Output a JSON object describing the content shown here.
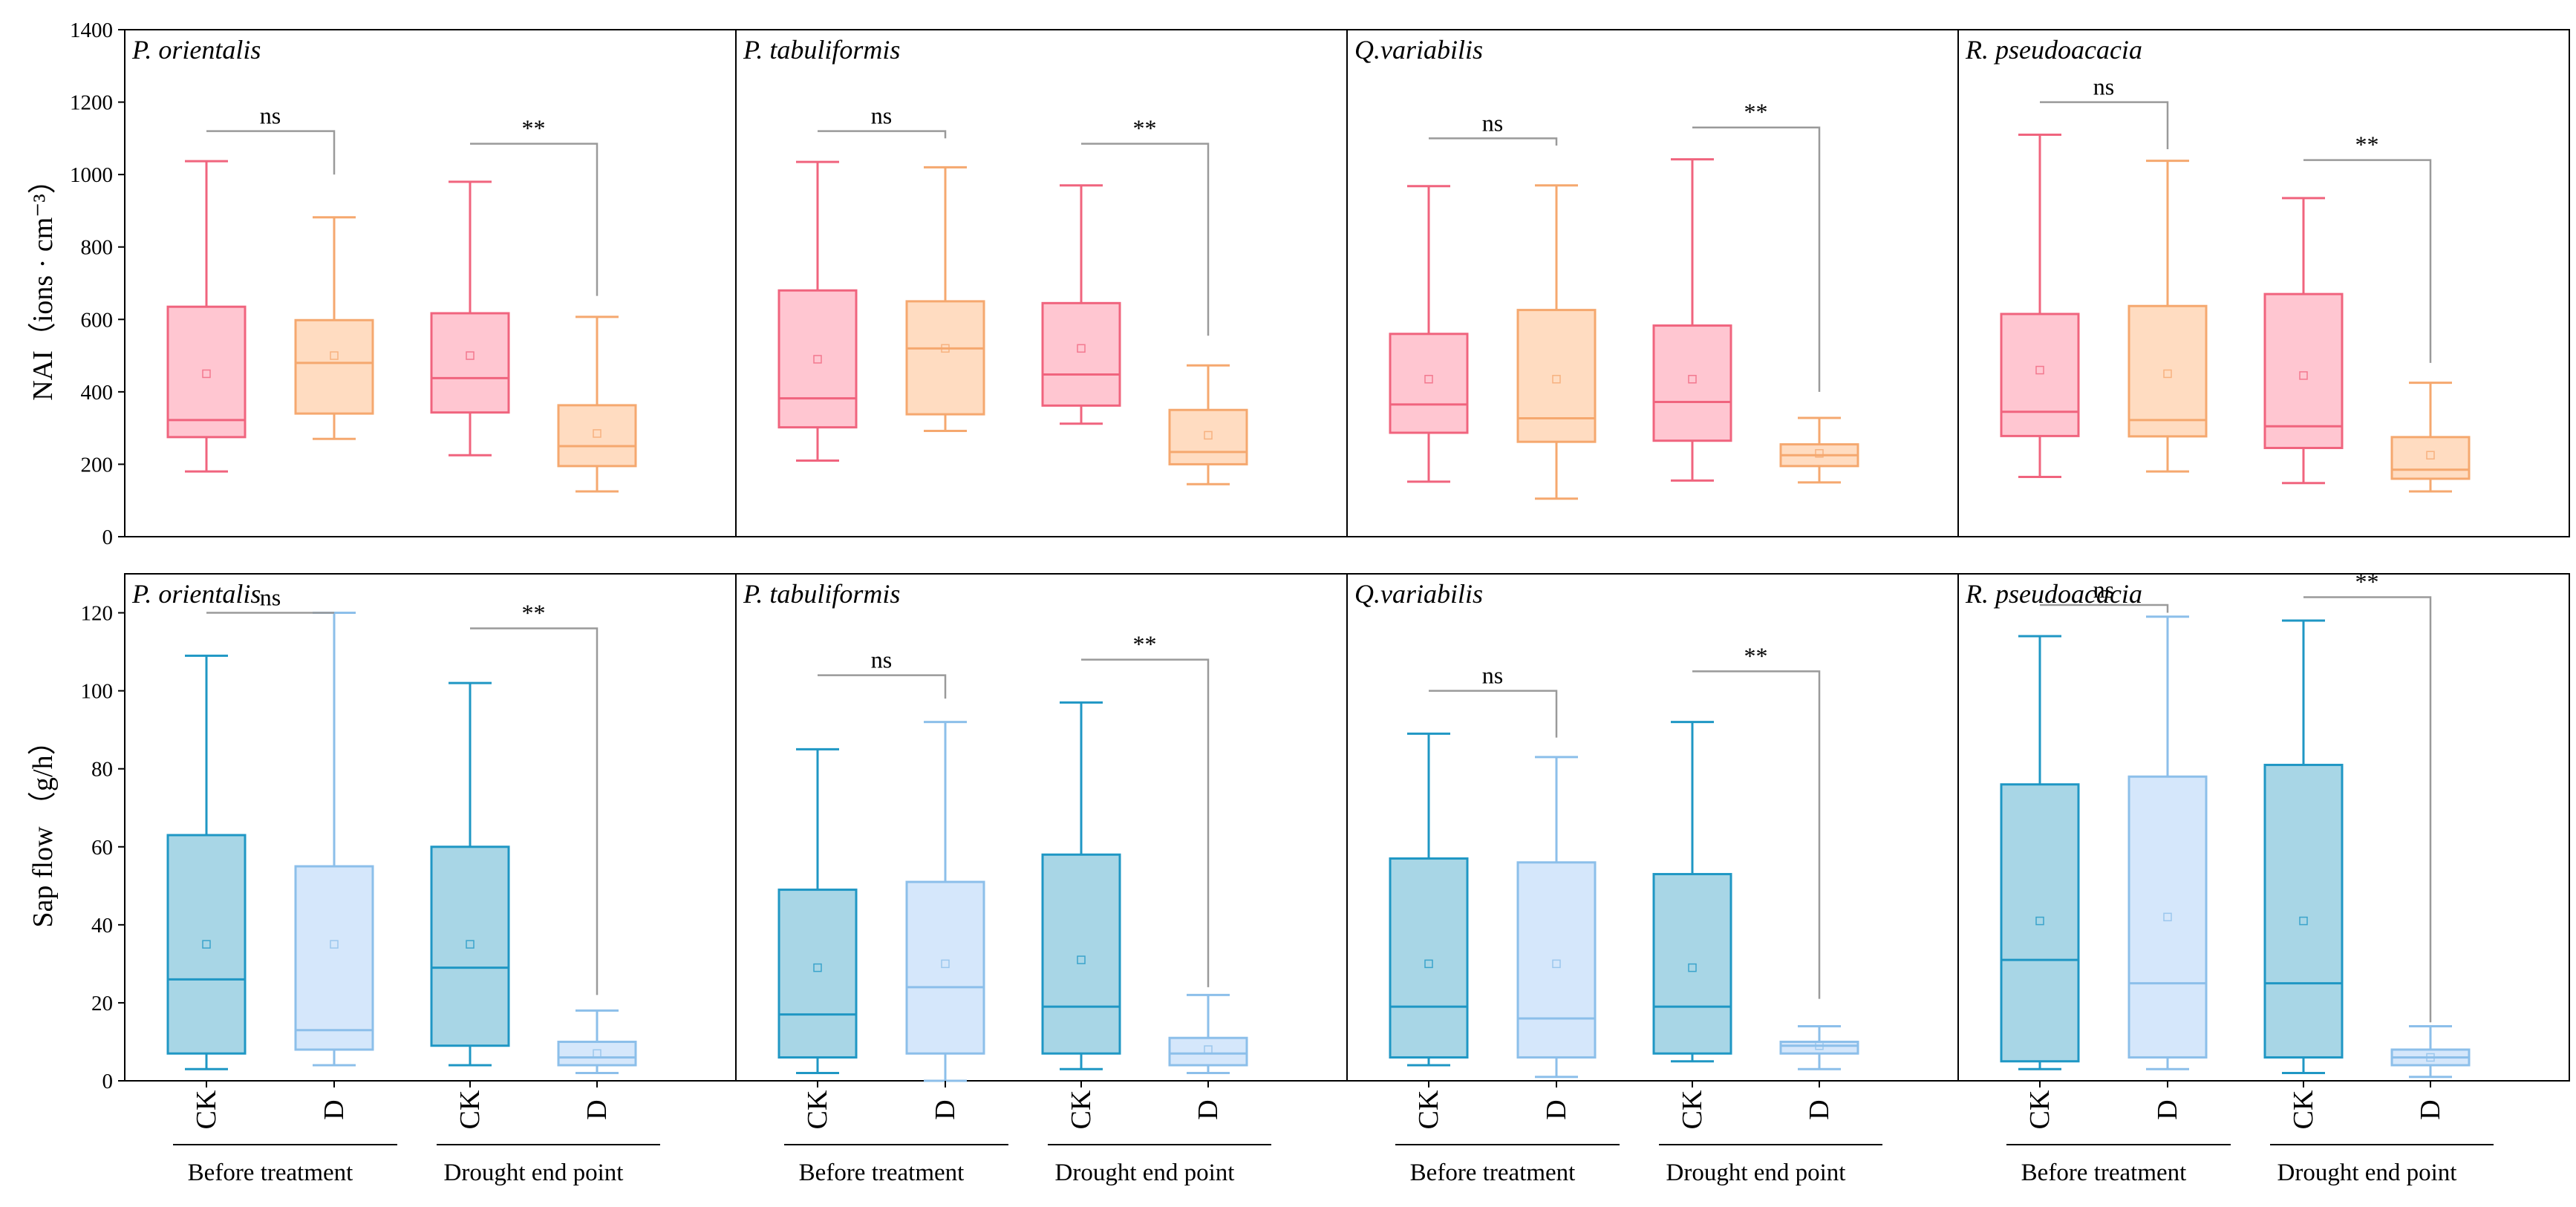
{
  "chart_data": {
    "type": "boxplot",
    "species": [
      "P. orientalis",
      "P. tabuliformis",
      "Q.variabilis",
      "R.  pseudoacacia"
    ],
    "categories": [
      "CK",
      "D",
      "CK",
      "D"
    ],
    "groups": [
      "Before treatment",
      "Drought end point"
    ],
    "colors": {
      "nai_ck_fill": "#ffc6d1",
      "nai_ck_line": "#f0647e",
      "nai_d_fill": "#ffdcc1",
      "nai_d_line": "#f5a86f",
      "sap_ck_fill": "#a8d6e6",
      "sap_ck_line": "#1f97c4",
      "sap_d_fill": "#d5e7fb",
      "sap_d_line": "#8cbfea",
      "bracket": "#9a9a9a"
    },
    "rows": [
      {
        "key": "nai",
        "ylabel": "NAI（ions · cm⁻³）",
        "ylim": [
          0,
          1400
        ],
        "yticks": [
          0,
          200,
          400,
          600,
          800,
          1000,
          1200,
          1400
        ],
        "panels": [
          {
            "species": "P. orientalis",
            "boxes": [
              {
                "whisker_low": 180,
                "q1": 275,
                "median": 322,
                "q3": 635,
                "whisker_high": 1037,
                "mean": 450
              },
              {
                "whisker_low": 270,
                "q1": 340,
                "median": 480,
                "q3": 598,
                "whisker_high": 882,
                "mean": 500
              },
              {
                "whisker_low": 225,
                "q1": 343,
                "median": 438,
                "q3": 617,
                "whisker_high": 980,
                "mean": 500
              },
              {
                "whisker_low": 125,
                "q1": 195,
                "median": 250,
                "q3": 363,
                "whisker_high": 607,
                "mean": 285
              }
            ],
            "brackets": [
              {
                "label": "ns",
                "y": 1120,
                "left_y": 1120,
                "right_y": 1000
              },
              {
                "label": "**",
                "y": 1085,
                "left_y": 1085,
                "right_y": 665
              }
            ]
          },
          {
            "species": "P. tabuliformis",
            "boxes": [
              {
                "whisker_low": 210,
                "q1": 302,
                "median": 382,
                "q3": 680,
                "whisker_high": 1035,
                "mean": 490
              },
              {
                "whisker_low": 292,
                "q1": 338,
                "median": 520,
                "q3": 650,
                "whisker_high": 1020,
                "mean": 520
              },
              {
                "whisker_low": 312,
                "q1": 362,
                "median": 448,
                "q3": 645,
                "whisker_high": 970,
                "mean": 520
              },
              {
                "whisker_low": 145,
                "q1": 200,
                "median": 234,
                "q3": 350,
                "whisker_high": 473,
                "mean": 280
              }
            ],
            "brackets": [
              {
                "label": "ns",
                "y": 1120,
                "left_y": 1120,
                "right_y": 1100
              },
              {
                "label": "**",
                "y": 1085,
                "left_y": 1085,
                "right_y": 555
              }
            ]
          },
          {
            "species": "Q.variabilis",
            "boxes": [
              {
                "whisker_low": 152,
                "q1": 287,
                "median": 365,
                "q3": 560,
                "whisker_high": 968,
                "mean": 435
              },
              {
                "whisker_low": 105,
                "q1": 262,
                "median": 327,
                "q3": 626,
                "whisker_high": 970,
                "mean": 435
              },
              {
                "whisker_low": 155,
                "q1": 265,
                "median": 372,
                "q3": 583,
                "whisker_high": 1042,
                "mean": 435
              },
              {
                "whisker_low": 150,
                "q1": 195,
                "median": 225,
                "q3": 255,
                "whisker_high": 328,
                "mean": 230
              }
            ],
            "brackets": [
              {
                "label": "ns",
                "y": 1100,
                "left_y": 1100,
                "right_y": 1080
              },
              {
                "label": "**",
                "y": 1130,
                "left_y": 1130,
                "right_y": 400
              }
            ]
          },
          {
            "species": "R.  pseudoacacia",
            "boxes": [
              {
                "whisker_low": 165,
                "q1": 278,
                "median": 345,
                "q3": 615,
                "whisker_high": 1110,
                "mean": 460
              },
              {
                "whisker_low": 180,
                "q1": 277,
                "median": 322,
                "q3": 637,
                "whisker_high": 1038,
                "mean": 450
              },
              {
                "whisker_low": 148,
                "q1": 245,
                "median": 305,
                "q3": 670,
                "whisker_high": 935,
                "mean": 445
              },
              {
                "whisker_low": 125,
                "q1": 160,
                "median": 185,
                "q3": 275,
                "whisker_high": 425,
                "mean": 225
              }
            ],
            "brackets": [
              {
                "label": "ns",
                "y": 1200,
                "left_y": 1200,
                "right_y": 1070
              },
              {
                "label": "**",
                "y": 1040,
                "left_y": 1040,
                "right_y": 480
              }
            ]
          }
        ]
      },
      {
        "key": "sap",
        "ylabel": "Sap flow （g/h）",
        "ylim": [
          0,
          130
        ],
        "yticks": [
          0,
          20,
          40,
          60,
          80,
          100,
          120
        ],
        "panels": [
          {
            "species": "P. orientalis",
            "boxes": [
              {
                "whisker_low": 3,
                "q1": 7,
                "median": 26,
                "q3": 63,
                "whisker_high": 109,
                "mean": 35
              },
              {
                "whisker_low": 4,
                "q1": 8,
                "median": 13,
                "q3": 55,
                "whisker_high": 120,
                "mean": 35
              },
              {
                "whisker_low": 4,
                "q1": 9,
                "median": 29,
                "q3": 60,
                "whisker_high": 102,
                "mean": 35
              },
              {
                "whisker_low": 2,
                "q1": 4,
                "median": 6,
                "q3": 10,
                "whisker_high": 18,
                "mean": 7
              }
            ],
            "brackets": [
              {
                "label": "ns",
                "y": 120,
                "left_y": 120,
                "right_y": 120
              },
              {
                "label": "**",
                "y": 116,
                "left_y": 116,
                "right_y": 22
              }
            ]
          },
          {
            "species": "P. tabuliformis",
            "boxes": [
              {
                "whisker_low": 2,
                "q1": 6,
                "median": 17,
                "q3": 49,
                "whisker_high": 85,
                "mean": 29
              },
              {
                "whisker_low": 0,
                "q1": 7,
                "median": 24,
                "q3": 51,
                "whisker_high": 92,
                "mean": 30
              },
              {
                "whisker_low": 3,
                "q1": 7,
                "median": 19,
                "q3": 58,
                "whisker_high": 97,
                "mean": 31
              },
              {
                "whisker_low": 2,
                "q1": 4,
                "median": 7,
                "q3": 11,
                "whisker_high": 22,
                "mean": 8
              }
            ],
            "brackets": [
              {
                "label": "ns",
                "y": 104,
                "left_y": 104,
                "right_y": 98
              },
              {
                "label": "**",
                "y": 108,
                "left_y": 108,
                "right_y": 24
              }
            ]
          },
          {
            "species": "Q.variabilis",
            "boxes": [
              {
                "whisker_low": 4,
                "q1": 6,
                "median": 19,
                "q3": 57,
                "whisker_high": 89,
                "mean": 30
              },
              {
                "whisker_low": 1,
                "q1": 6,
                "median": 16,
                "q3": 56,
                "whisker_high": 83,
                "mean": 30
              },
              {
                "whisker_low": 5,
                "q1": 7,
                "median": 19,
                "q3": 53,
                "whisker_high": 92,
                "mean": 29
              },
              {
                "whisker_low": 3,
                "q1": 7,
                "median": 9,
                "q3": 10,
                "whisker_high": 14,
                "mean": 9
              }
            ],
            "brackets": [
              {
                "label": "ns",
                "y": 100,
                "left_y": 100,
                "right_y": 88
              },
              {
                "label": "**",
                "y": 105,
                "left_y": 105,
                "right_y": 21
              }
            ]
          },
          {
            "species": "R.  pseudoacacia",
            "boxes": [
              {
                "whisker_low": 3,
                "q1": 5,
                "median": 31,
                "q3": 76,
                "whisker_high": 114,
                "mean": 41
              },
              {
                "whisker_low": 3,
                "q1": 6,
                "median": 25,
                "q3": 78,
                "whisker_high": 119,
                "mean": 42
              },
              {
                "whisker_low": 2,
                "q1": 6,
                "median": 25,
                "q3": 81,
                "whisker_high": 118,
                "mean": 41
              },
              {
                "whisker_low": 1,
                "q1": 4,
                "median": 6,
                "q3": 8,
                "whisker_high": 14,
                "mean": 6
              }
            ],
            "brackets": [
              {
                "label": "ns",
                "y": 122,
                "left_y": 122,
                "right_y": 120
              },
              {
                "label": "**",
                "y": 124,
                "left_y": 124,
                "right_y": 15
              }
            ]
          }
        ]
      }
    ]
  }
}
